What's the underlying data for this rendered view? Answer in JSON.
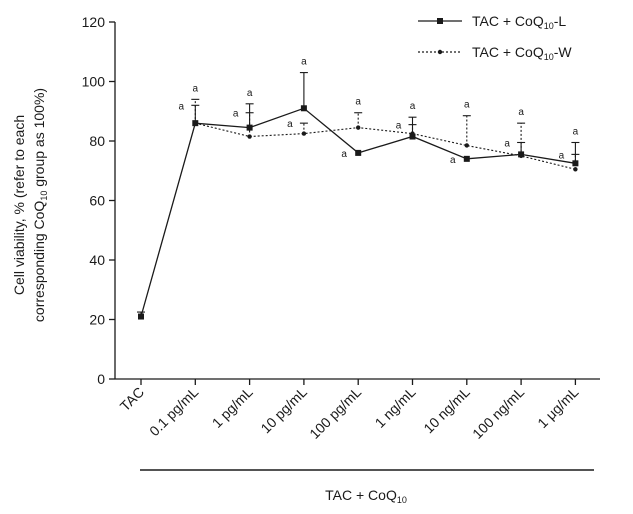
{
  "chart_data": {
    "type": "line",
    "title": "",
    "ylabel_line1": "Cell viability, % (refer to each",
    "ylabel_line2_pre": "corresponding CoQ",
    "ylabel_line2_sub": "10",
    "ylabel_line2_post": " group as 100%)",
    "xgroup_label_pre": "TAC + CoQ",
    "xgroup_label_sub": "10",
    "ylim": [
      0,
      120
    ],
    "yticks": [
      0,
      20,
      40,
      60,
      80,
      100,
      120
    ],
    "categories": [
      "TAC",
      "0.1 pg/mL",
      "1 pg/mL",
      "10 pg/mL",
      "100 pg/mL",
      "1 ng/mL",
      "10 ng/mL",
      "100 ng/mL",
      "1 μg/mL"
    ],
    "series": [
      {
        "name": "TAC + CoQ10-L",
        "legend_pre": "TAC + CoQ",
        "legend_sub": "10",
        "legend_post": "-L",
        "style": "solid",
        "marker": "square",
        "values": [
          21,
          86,
          84.5,
          91,
          76,
          81.5,
          74,
          75.5,
          72.5
        ],
        "errors": [
          1.5,
          6,
          8,
          12,
          0,
          6.5,
          0,
          4,
          7
        ]
      },
      {
        "name": "TAC + CoQ10-W",
        "legend_pre": "TAC + CoQ",
        "legend_sub": "10",
        "legend_post": "-W",
        "style": "dotted",
        "marker": "dot",
        "values": [
          null,
          86,
          81.5,
          82.5,
          84.5,
          82.5,
          78.5,
          75,
          70.5
        ],
        "errors": [
          null,
          8,
          8,
          3.5,
          5,
          3,
          10,
          11,
          5
        ]
      }
    ],
    "annotation_letter": "a"
  }
}
